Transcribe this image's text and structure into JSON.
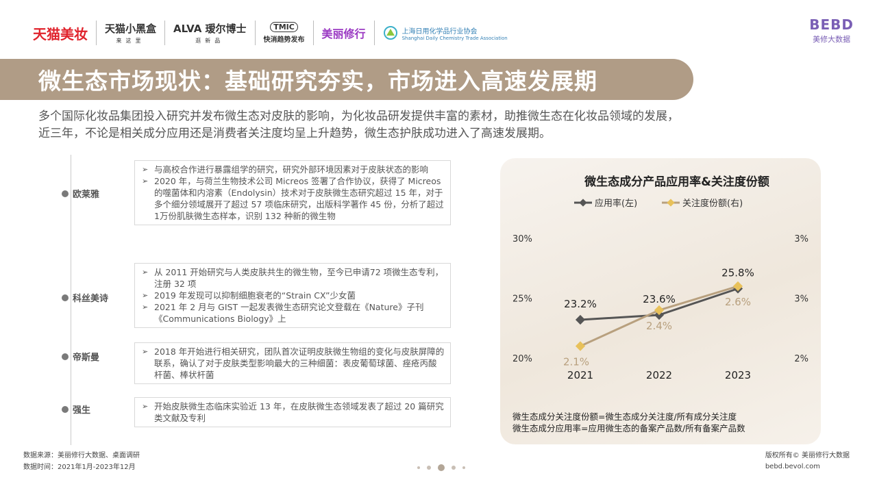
{
  "header": {
    "logos": [
      {
        "main": "天猫美妆",
        "sub": ""
      },
      {
        "main": "天猫小黑盒",
        "sub": "来这里"
      },
      {
        "main": "ALVA 瑷尔博士",
        "sub": "逛新品"
      },
      {
        "main": "TMIC",
        "sub": "快消趋势发布"
      },
      {
        "main": "美丽修行",
        "sub": ""
      },
      {
        "main": "上海日用化学品行业协会",
        "sub": "Shanghai Daily Chemistry Trade Association"
      }
    ],
    "bebd_mark": "BEBD",
    "bebd_name": "美修大数据"
  },
  "title": "微生态市场现状：基础研究夯实，市场进入高速发展期",
  "intro": "多个国际化妆品集团投入研究并发布微生态对皮肤的影响，为化妆品研发提供丰富的素材，助推微生态在化妆品领域的发展，近三年，不论是相关成分应用还是消费者关注度均呈上升趋势，微生态护肤成功进入了高速发展期。",
  "brands": [
    {
      "name": "欧莱雅",
      "items": [
        "与高校合作进行暴露组学的研究，研究外部环境因素对于皮肤状态的影响",
        "2020 年，与荷兰生物技术公司 Micreos 签署了合作协议，获得了 Micreos 的噬菌体和内溶素（Endolysin）技术对于皮肤微生态研究超过 15 年，对于多个细分领域展开了超过 57 项临床研究，出版科学著作 45 份，分析了超过 1万份肌肤微生态样本，识别 132 种新的微生物"
      ]
    },
    {
      "name": "科丝美诗",
      "items": [
        "从 2011 开始研究与人类皮肤共生的微生物，至今已申请72 项微生态专利，注册 32 项",
        "2019 年发现可以抑制细胞衰老的“Strain CX”少女菌",
        "2021 年 2 月与 GIST 一起发表微生态研究论文登载在《Nature》子刊《Communications Biology》上"
      ]
    },
    {
      "name": "帝斯曼",
      "items": [
        "2018 年开始进行相关研究，团队首次证明皮肤微生物组的变化与皮肤屏障的联系，确认了对于皮肤类型影响最大的三种细菌：表皮葡萄球菌、痤疮丙酸杆菌、棒状杆菌"
      ]
    },
    {
      "name": "强生",
      "items": [
        "开始皮肤微生态临床实验近 13 年，在皮肤微生态领域发表了超过 20 篇研究类文献及专利"
      ]
    }
  ],
  "chart_data": {
    "type": "line",
    "title": "微生态成分产品应用率&关注度份额",
    "categories": [
      "2021",
      "2022",
      "2023"
    ],
    "series": [
      {
        "name": "应用率(左)",
        "axis": "left",
        "values": [
          23.2,
          23.6,
          25.8
        ],
        "labels": [
          "23.2%",
          "23.6%",
          "25.8%"
        ],
        "color": "#555555"
      },
      {
        "name": "关注度份额(右)",
        "axis": "right",
        "values": [
          2.1,
          2.4,
          2.6
        ],
        "labels": [
          "2.1%",
          "2.4%",
          "2.6%"
        ],
        "color": "#b8a07e"
      }
    ],
    "left_axis": {
      "ylim": [
        20,
        30
      ],
      "ticks": [
        "20%",
        "25%",
        "30%"
      ]
    },
    "right_axis": {
      "ylim": [
        2,
        3
      ],
      "ticks": [
        "2%",
        "3%",
        "3%"
      ]
    },
    "legend_position": "top",
    "grid": false,
    "marker_color_right": "#e8c15a"
  },
  "chart_notes": [
    "微生态成分关注度份额=微生态成分关注度/所有成分关注度",
    "微生态成分应用率=应用微生态的备案产品数/所有备案产品数"
  ],
  "footer": {
    "source": "数据来源：美丽修行大数据、桌面调研",
    "time": "数据时间：2021年1月-2023年12月",
    "copyright": "版权所有© 美丽修行大数据",
    "site": "bebd.bevol.com"
  }
}
